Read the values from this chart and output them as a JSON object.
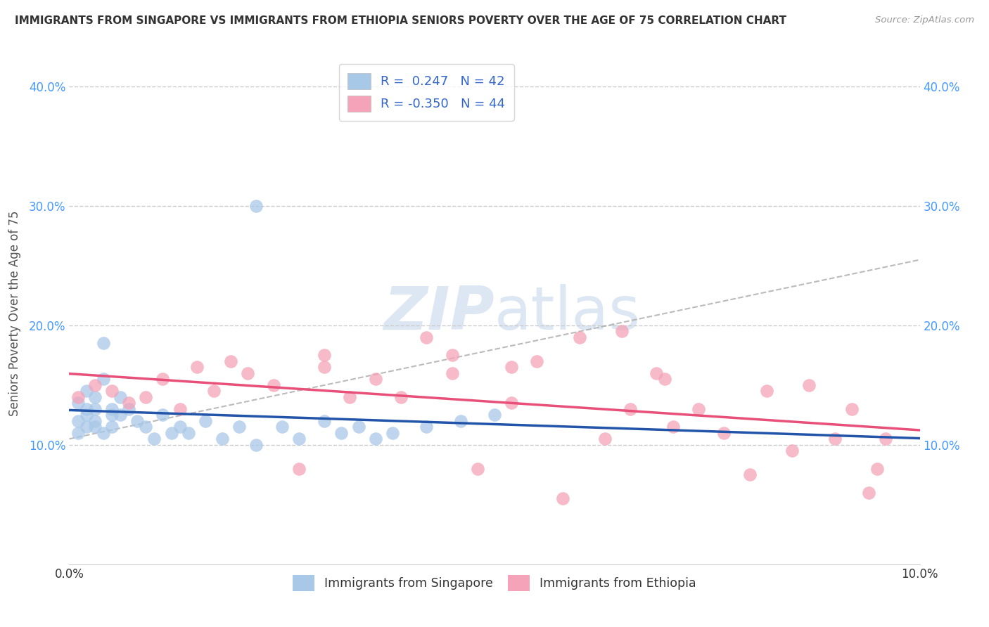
{
  "title": "IMMIGRANTS FROM SINGAPORE VS IMMIGRANTS FROM ETHIOPIA SENIORS POVERTY OVER THE AGE OF 75 CORRELATION CHART",
  "source": "Source: ZipAtlas.com",
  "ylabel": "Seniors Poverty Over the Age of 75",
  "xlim": [
    0.0,
    0.1
  ],
  "ylim": [
    0.0,
    0.42
  ],
  "ytick_vals": [
    0.1,
    0.2,
    0.3,
    0.4
  ],
  "ytick_labels": [
    "10.0%",
    "20.0%",
    "30.0%",
    "40.0%"
  ],
  "xtick_vals": [
    0.0,
    0.01,
    0.02,
    0.03,
    0.04,
    0.05,
    0.06,
    0.07,
    0.08,
    0.09,
    0.1
  ],
  "legend_r1": "R =  0.247",
  "legend_n1": "N = 42",
  "legend_r2": "R = -0.350",
  "legend_n2": "N = 44",
  "color_singapore": "#a8c8e8",
  "color_ethiopia": "#f4a3b8",
  "line_color_singapore": "#2255aa",
  "line_color_ethiopia": "#e8507a",
  "watermark_color": "#c5d8ec",
  "singapore_x": [
    0.001,
    0.001,
    0.001,
    0.002,
    0.002,
    0.002,
    0.002,
    0.003,
    0.003,
    0.003,
    0.003,
    0.004,
    0.004,
    0.004,
    0.005,
    0.005,
    0.005,
    0.006,
    0.006,
    0.007,
    0.008,
    0.009,
    0.01,
    0.011,
    0.012,
    0.013,
    0.014,
    0.016,
    0.018,
    0.02,
    0.022,
    0.025,
    0.027,
    0.03,
    0.032,
    0.034,
    0.036,
    0.038,
    0.042,
    0.046,
    0.05,
    0.022
  ],
  "singapore_y": [
    0.135,
    0.12,
    0.11,
    0.13,
    0.145,
    0.125,
    0.115,
    0.14,
    0.13,
    0.12,
    0.115,
    0.185,
    0.155,
    0.11,
    0.13,
    0.125,
    0.115,
    0.14,
    0.125,
    0.13,
    0.12,
    0.115,
    0.105,
    0.125,
    0.11,
    0.115,
    0.11,
    0.12,
    0.105,
    0.115,
    0.1,
    0.115,
    0.105,
    0.12,
    0.11,
    0.115,
    0.105,
    0.11,
    0.115,
    0.12,
    0.125,
    0.3
  ],
  "ethiopia_x": [
    0.001,
    0.003,
    0.005,
    0.007,
    0.009,
    0.011,
    0.013,
    0.015,
    0.017,
    0.019,
    0.021,
    0.024,
    0.027,
    0.03,
    0.033,
    0.036,
    0.039,
    0.042,
    0.045,
    0.048,
    0.052,
    0.055,
    0.058,
    0.06,
    0.063,
    0.066,
    0.069,
    0.071,
    0.074,
    0.077,
    0.08,
    0.082,
    0.085,
    0.087,
    0.09,
    0.092,
    0.094,
    0.096,
    0.052,
    0.065,
    0.03,
    0.045,
    0.07,
    0.095
  ],
  "ethiopia_y": [
    0.14,
    0.15,
    0.145,
    0.135,
    0.14,
    0.155,
    0.13,
    0.165,
    0.145,
    0.17,
    0.16,
    0.15,
    0.08,
    0.165,
    0.14,
    0.155,
    0.14,
    0.19,
    0.16,
    0.08,
    0.135,
    0.17,
    0.055,
    0.19,
    0.105,
    0.13,
    0.16,
    0.115,
    0.13,
    0.11,
    0.075,
    0.145,
    0.095,
    0.15,
    0.105,
    0.13,
    0.06,
    0.105,
    0.165,
    0.195,
    0.175,
    0.175,
    0.155,
    0.08
  ]
}
